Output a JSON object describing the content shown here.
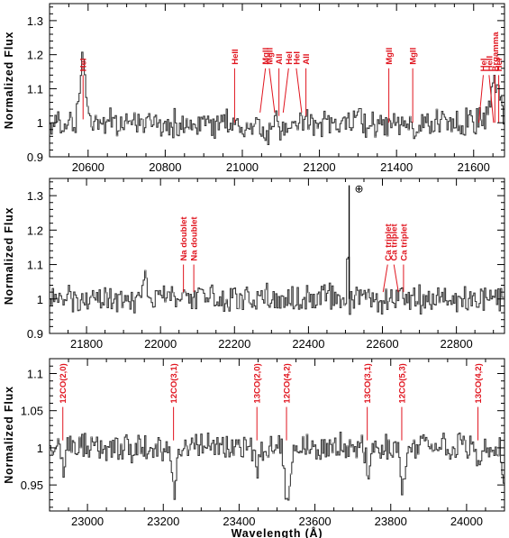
{
  "chart_data": [
    {
      "type": "line",
      "xlabel": "",
      "ylabel": "Normalized Flux",
      "xlim": [
        20500,
        21680
      ],
      "ylim": [
        0.9,
        1.35
      ],
      "xticks": [
        20600,
        20800,
        21000,
        21200,
        21400,
        21600
      ],
      "yticks": [
        0.9,
        1,
        1.1,
        1.2,
        1.3
      ],
      "ytick_labels": [
        "0.9",
        "1",
        "1.1",
        "1.2",
        "1.3"
      ],
      "noise": 0.035,
      "spectrum_features": [
        {
          "x": 20585,
          "depth": 0.2,
          "width": 7
        },
        {
          "x": 21060,
          "depth": -0.045,
          "width": 10
        },
        {
          "x": 21110,
          "depth": -0.04,
          "width": 6
        },
        {
          "x": 21140,
          "depth": -0.03,
          "width": 6
        },
        {
          "x": 21380,
          "depth": -0.02,
          "width": 5
        },
        {
          "x": 21440,
          "depth": -0.02,
          "width": 5
        },
        {
          "x": 21655,
          "depth": 0.12,
          "width": 12
        }
      ],
      "lines": [
        {
          "label": "HeI",
          "x": 20587,
          "top": 1.14,
          "bottom": 1.01,
          "slant": 0
        },
        {
          "label": "HeII",
          "x": 20980,
          "top": 1.16,
          "bottom": 1.0,
          "slant": 0
        },
        {
          "label": "MgII",
          "x": 21060,
          "top": 1.16,
          "bottom": 1.03,
          "slant": -6
        },
        {
          "label": "MgII",
          "x": 21070,
          "top": 1.16,
          "bottom": 1.03,
          "slant": 6
        },
        {
          "label": "AlI",
          "x": 21095,
          "top": 1.16,
          "bottom": 1.02,
          "slant": 0
        },
        {
          "label": "HeI",
          "x": 21120,
          "top": 1.16,
          "bottom": 1.03,
          "slant": -6
        },
        {
          "label": "HeI",
          "x": 21140,
          "top": 1.16,
          "bottom": 1.03,
          "slant": 6
        },
        {
          "label": "AlI",
          "x": 21165,
          "top": 1.16,
          "bottom": 1.02,
          "slant": 0
        },
        {
          "label": "MgII",
          "x": 21380,
          "top": 1.16,
          "bottom": 1.0,
          "slant": 0
        },
        {
          "label": "MgII",
          "x": 21442,
          "top": 1.16,
          "bottom": 1.0,
          "slant": 0
        },
        {
          "label": "HeI",
          "x": 21625,
          "top": 1.14,
          "bottom": 1.0,
          "slant": -5
        },
        {
          "label": "HeII",
          "x": 21640,
          "top": 1.14,
          "bottom": 1.0,
          "slant": 5
        },
        {
          "label": "Brgamma",
          "x": 21655,
          "top": 1.14,
          "bottom": 1.0,
          "slant": 0
        },
        {
          "label": "HeI",
          "x": 21665,
          "top": 1.14,
          "bottom": 1.0,
          "slant": 0
        }
      ]
    },
    {
      "type": "line",
      "xlabel": "",
      "ylabel": "Normalized Flux",
      "xlim": [
        21700,
        22930
      ],
      "ylim": [
        0.9,
        1.35
      ],
      "xticks": [
        21800,
        22000,
        22200,
        22400,
        22600,
        22800
      ],
      "yticks": [
        0.9,
        1,
        1.1,
        1.2,
        1.3
      ],
      "ytick_labels": [
        "0.9",
        "1",
        "1.1",
        "1.2",
        "1.3"
      ],
      "noise": 0.035,
      "spectrum_features": [
        {
          "x": 21955,
          "depth": 0.08,
          "width": 4
        },
        {
          "x": 22060,
          "depth": 0.05,
          "width": 4
        },
        {
          "x": 22505,
          "depth": 0.3,
          "width": 1.5
        }
      ],
      "telluric": {
        "x": 22510,
        "symbol": "⊕",
        "top": 1.33,
        "bottom": 1.0
      },
      "lines": [
        {
          "label": "Na doublet",
          "x": 22062,
          "top": 1.1,
          "bottom": 1.02,
          "slant": 0
        },
        {
          "label": "Na doublet",
          "x": 22090,
          "top": 1.1,
          "bottom": 1.02,
          "slant": 0
        },
        {
          "label": "Ca triplet",
          "x": 22614,
          "top": 1.1,
          "bottom": 1.02,
          "slant": -5
        },
        {
          "label": "Ca triplet",
          "x": 22631,
          "top": 1.1,
          "bottom": 1.02,
          "slant": 5
        },
        {
          "label": "Ca triplet",
          "x": 22657,
          "top": 1.1,
          "bottom": 1.02,
          "slant": 0
        }
      ]
    },
    {
      "type": "line",
      "xlabel": "Wavelength (Å)",
      "ylabel": "Normalized Flux",
      "xlim": [
        22900,
        24100
      ],
      "ylim": [
        0.915,
        1.12
      ],
      "xticks": [
        23000,
        23200,
        23400,
        23600,
        23800,
        24000
      ],
      "yticks": [
        0.95,
        1,
        1.05,
        1.1
      ],
      "ytick_labels": [
        "0.95",
        "1",
        "1.05",
        "1.1"
      ],
      "noise": 0.016,
      "spectrum_features": [
        {
          "x": 22935,
          "depth": -0.04,
          "width": 4
        },
        {
          "x": 23228,
          "depth": -0.06,
          "width": 6
        },
        {
          "x": 23445,
          "depth": -0.025,
          "width": 4
        },
        {
          "x": 23525,
          "depth": -0.07,
          "width": 7
        },
        {
          "x": 23740,
          "depth": -0.04,
          "width": 5
        },
        {
          "x": 23830,
          "depth": -0.05,
          "width": 5
        },
        {
          "x": 24030,
          "depth": -0.03,
          "width": 5
        },
        {
          "x": 24095,
          "depth": -0.04,
          "width": 3
        }
      ],
      "lines": [
        {
          "label": "12CO(2,0)",
          "x": 22935,
          "top": 1.055,
          "bottom": 1.01,
          "slant": 0
        },
        {
          "label": "12CO(3,1)",
          "x": 23227,
          "top": 1.055,
          "bottom": 1.01,
          "slant": 0
        },
        {
          "label": "13CO(2,0)",
          "x": 23447,
          "top": 1.055,
          "bottom": 1.01,
          "slant": 0
        },
        {
          "label": "12CO(4,2)",
          "x": 23525,
          "top": 1.055,
          "bottom": 1.01,
          "slant": 0
        },
        {
          "label": "13CO(3,1)",
          "x": 23738,
          "top": 1.055,
          "bottom": 1.01,
          "slant": 0
        },
        {
          "label": "12CO(5,3)",
          "x": 23829,
          "top": 1.055,
          "bottom": 1.01,
          "slant": 0
        },
        {
          "label": "13CO(4,2)",
          "x": 24030,
          "top": 1.055,
          "bottom": 1.01,
          "slant": 0
        }
      ]
    }
  ],
  "colors": {
    "spectrum": "#3a3a3a",
    "spectrum_highlight": "#aaaaaa",
    "line_marker": "#e0141e",
    "axis": "#000000"
  }
}
